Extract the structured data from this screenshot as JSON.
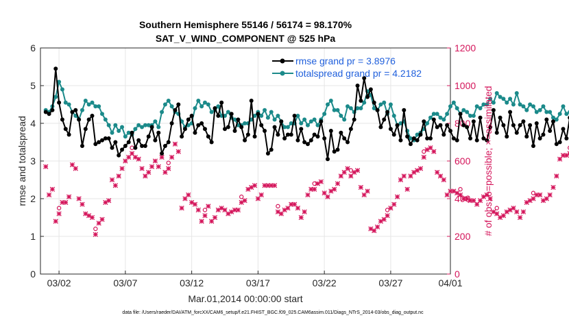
{
  "chart_data": {
    "type": "line",
    "title": "Southern Hemisphere 55146 / 56174 = 98.170%",
    "subtitle": "SAT_V_WIND_COMPONENT @ 525 hPa",
    "xlabel": "Mar.01,2014 00:00:00 start",
    "ylabel_left": "rmse and totalspread",
    "ylabel_right": "# of obs: o=possible; ×=assimilated",
    "xlim": [
      0.6,
      31.5
    ],
    "ylim_left": [
      0,
      6
    ],
    "ylim_right": [
      0,
      1200
    ],
    "x_ticks": [
      {
        "x": 2,
        "label": "03/02"
      },
      {
        "x": 7,
        "label": "03/07"
      },
      {
        "x": 12,
        "label": "03/12"
      },
      {
        "x": 17,
        "label": "03/17"
      },
      {
        "x": 22,
        "label": "03/22"
      },
      {
        "x": 27,
        "label": "03/27"
      },
      {
        "x": 32,
        "label": "04/01"
      }
    ],
    "y_ticks_left": [
      "0",
      "1",
      "2",
      "3",
      "4",
      "5",
      "6"
    ],
    "y_ticks_right": [
      "0",
      "200",
      "400",
      "600",
      "800",
      "1000",
      "1200"
    ],
    "legend_position": "top-right",
    "colors": {
      "rmse": "#000000",
      "totalspread": "#1b8a8a",
      "obs": "#d4145a",
      "legend_text": "#1f5fdc",
      "grid": "#e6e6e6"
    },
    "x_step_days": 0.25,
    "series": [
      {
        "name": "rmse grand pr = 3.8976",
        "axis": "left",
        "values": [
          4.3,
          4.25,
          4.35,
          5.45,
          4.55,
          4.1,
          3.85,
          3.7,
          4.3,
          4.35,
          4.1,
          3.4,
          3.85,
          4.1,
          4.2,
          3.45,
          3.5,
          3.55,
          3.6,
          3.6,
          3.35,
          3.5,
          3.15,
          3.3,
          3.4,
          3.5,
          3.75,
          3.35,
          3.55,
          3.4,
          3.4,
          3.65,
          3.9,
          3.55,
          3.75,
          3.2,
          3.4,
          3.5,
          4.0,
          4.35,
          4.5,
          3.65,
          3.85,
          4.1,
          4.2,
          3.75,
          3.95,
          4.0,
          3.85,
          3.65,
          3.5,
          4.4,
          4.2,
          4.55,
          3.85,
          3.9,
          4.25,
          3.8,
          4.1,
          3.9,
          3.55,
          3.7,
          4.6,
          3.65,
          4.25,
          3.95,
          3.8,
          3.2,
          3.3,
          3.9,
          3.7,
          4.05,
          3.6,
          3.7,
          3.7,
          4.2,
          3.55,
          3.85,
          3.5,
          3.45,
          3.55,
          3.7,
          3.65,
          4.05,
          3.6,
          3.05,
          3.8,
          3.25,
          3.3,
          3.75,
          3.6,
          3.5,
          3.85,
          4.1,
          5.0,
          4.6,
          5.2,
          4.7,
          4.9,
          4.55,
          4.35,
          3.9,
          4.1,
          4.3,
          3.85,
          3.7,
          3.95,
          3.55,
          4.35,
          3.65,
          3.45,
          3.6,
          3.55,
          3.7,
          4.05,
          3.6,
          3.6,
          4.1,
          3.9,
          3.95,
          3.7,
          3.95,
          3.8,
          3.6,
          3.55,
          4.25,
          3.95,
          3.9,
          3.6,
          4.05,
          3.55,
          4.15,
          3.6,
          3.55,
          3.9,
          4.35,
          3.75,
          4.15,
          3.95,
          3.65,
          4.3,
          3.95,
          3.75,
          3.95,
          4.05,
          3.65,
          3.95,
          3.4,
          4.0,
          3.6,
          3.7,
          4.1,
          3.8,
          4.05,
          3.45,
          3.5,
          3.85,
          3.6,
          4.15,
          3.55,
          4.25,
          4.15,
          3.3,
          3.4,
          3.35
        ]
      },
      {
        "name": "totalspread grand pr = 4.2182",
        "axis": "left",
        "values": [
          4.35,
          4.3,
          4.45,
          4.7,
          5.1,
          4.9,
          4.55,
          4.5,
          4.3,
          4.2,
          4.1,
          4.35,
          4.6,
          4.5,
          4.55,
          4.45,
          4.45,
          4.25,
          4.1,
          3.95,
          3.75,
          3.95,
          3.8,
          3.9,
          3.65,
          3.75,
          3.7,
          3.85,
          3.95,
          3.9,
          3.95,
          3.95,
          3.95,
          4.05,
          3.9,
          4.3,
          4.5,
          4.6,
          4.45,
          4.3,
          4.25,
          4.05,
          3.9,
          3.95,
          4.0,
          4.4,
          4.6,
          4.45,
          4.55,
          4.5,
          4.3,
          4.35,
          4.45,
          4.2,
          4.2,
          4.3,
          4.15,
          4.1,
          3.95,
          3.95,
          4.0,
          4.0,
          4.1,
          4.2,
          4.3,
          4.2,
          4.35,
          4.15,
          4.3,
          4.1,
          4.2,
          4.05,
          3.9,
          3.9,
          4.0,
          4.0,
          4.2,
          4.0,
          4.1,
          3.95,
          4.05,
          4.1,
          3.95,
          4.1,
          4.25,
          4.5,
          4.6,
          4.35,
          4.35,
          4.2,
          4.1,
          4.45,
          4.4,
          4.3,
          4.4,
          4.4,
          4.55,
          4.85,
          4.75,
          4.4,
          4.35,
          4.5,
          4.55,
          4.25,
          4.5,
          4.2,
          3.95,
          4.0,
          4.05,
          3.8,
          3.6,
          3.55,
          3.7,
          3.75,
          3.85,
          4.0,
          4.15,
          4.25,
          4.25,
          4.15,
          4.1,
          4.25,
          4.45,
          4.55,
          4.4,
          4.25,
          4.35,
          4.3,
          4.2,
          4.2,
          4.45,
          4.4,
          4.5,
          4.5,
          4.65,
          4.55,
          4.8,
          4.7,
          4.65,
          4.55,
          4.65,
          4.5,
          4.8,
          4.5,
          4.45,
          4.35,
          4.5,
          4.45,
          4.3,
          4.35,
          4.45,
          4.3,
          4.3,
          4.15,
          4.1,
          4.25,
          4.45,
          4.25,
          4.3,
          4.3,
          4.4,
          4.2,
          4.05,
          4.1,
          4.1,
          4.0,
          3.9,
          4.05
        ]
      },
      {
        "name": "obs",
        "axis": "right",
        "values": [
          570,
          420,
          450,
          280,
          320,
          380,
          380,
          410,
          580,
          560,
          400,
          370,
          320,
          310,
          300,
          210,
          270,
          290,
          380,
          390,
          500,
          470,
          520,
          560,
          600,
          620,
          640,
          620,
          610,
          560,
          520,
          540,
          570,
          600,
          570,
          620,
          540,
          560,
          620,
          690,
          650,
          350,
          400,
          420,
          380,
          370,
          340,
          280,
          310,
          360,
          280,
          300,
          340,
          350,
          340,
          320,
          330,
          340,
          340,
          380,
          390,
          450,
          460,
          470,
          400,
          420,
          470,
          470,
          470,
          470,
          330,
          320,
          340,
          350,
          370,
          370,
          350,
          300,
          330,
          420,
          450,
          450,
          480,
          490,
          430,
          410,
          440,
          450,
          480,
          520,
          540,
          560,
          520,
          540,
          550,
          460,
          420,
          440,
          240,
          230,
          250,
          280,
          290,
          310,
          350,
          370,
          410,
          500,
          520,
          450,
          520,
          540,
          550,
          560,
          620,
          660,
          670,
          650,
          540,
          520,
          500,
          420,
          440,
          440,
          430,
          420,
          400,
          400,
          390,
          390,
          370,
          390,
          410,
          420,
          400,
          330,
          320,
          300,
          310,
          330,
          340,
          350,
          330,
          300,
          330,
          380,
          390,
          400,
          420,
          420,
          390,
          400,
          420,
          460,
          520,
          610,
          630,
          630,
          640,
          660,
          650,
          640,
          620,
          590,
          580,
          0
        ]
      }
    ]
  },
  "footnote": "data file: /Users/raeder/DAI/ATM_forcXX/CAM6_setup/f.e21.FHIST_BGC.f09_025.CAM6assim.011/Diags_NTrS_2014-03/obs_diag_output.nc"
}
